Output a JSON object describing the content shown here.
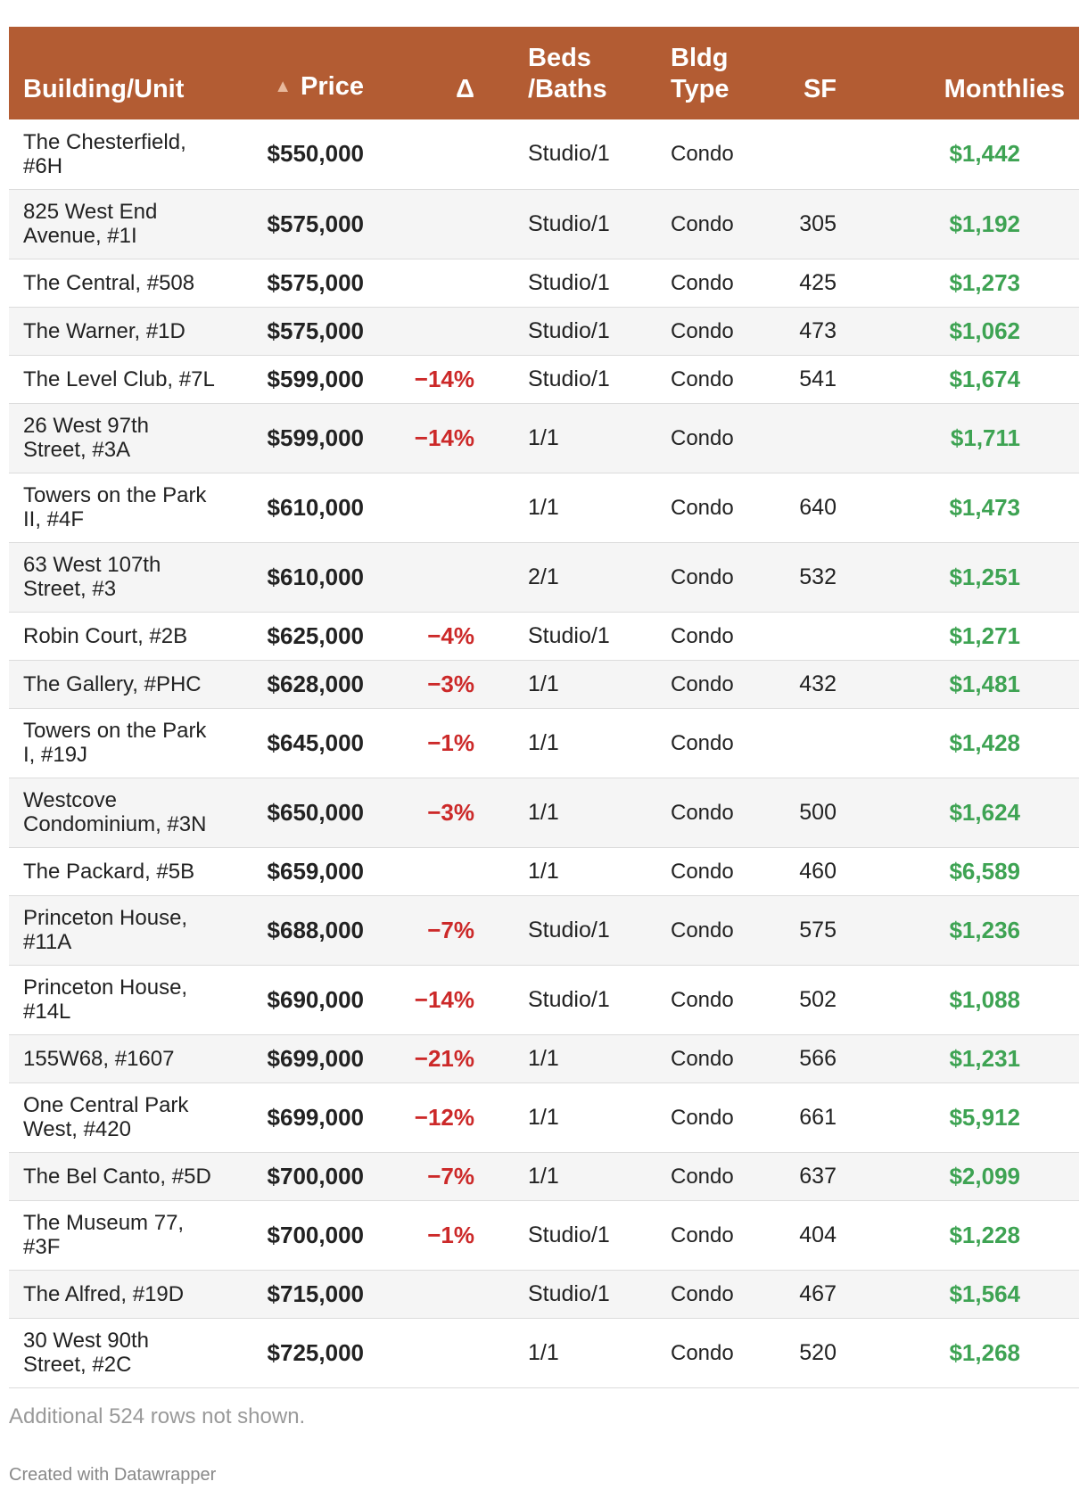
{
  "table": {
    "headers": {
      "building": "Building/Unit",
      "price_arrow": "▲",
      "price": "Price",
      "delta": "Δ",
      "beds_line1": "Beds",
      "beds_line2": "/Baths",
      "type_line1": "Bldg",
      "type_line2": "Type",
      "sf": "SF",
      "monthlies": "Monthlies"
    },
    "rows": [
      {
        "building_line1": "The Chesterfield,",
        "building_line2": "#6H",
        "price": "$550,000",
        "delta": "",
        "beds": "Studio/1",
        "type": "Condo",
        "sf": "",
        "monthlies": "$1,442"
      },
      {
        "building_line1": "825 West End",
        "building_line2": "Avenue, #1I",
        "price": "$575,000",
        "delta": "",
        "beds": "Studio/1",
        "type": "Condo",
        "sf": "305",
        "monthlies": "$1,192"
      },
      {
        "building_line1": "The Central, #508",
        "building_line2": "",
        "price": "$575,000",
        "delta": "",
        "beds": "Studio/1",
        "type": "Condo",
        "sf": "425",
        "monthlies": "$1,273"
      },
      {
        "building_line1": "The Warner, #1D",
        "building_line2": "",
        "price": "$575,000",
        "delta": "",
        "beds": "Studio/1",
        "type": "Condo",
        "sf": "473",
        "monthlies": "$1,062"
      },
      {
        "building_line1": "The Level Club, #7L",
        "building_line2": "",
        "price": "$599,000",
        "delta": "−14%",
        "beds": "Studio/1",
        "type": "Condo",
        "sf": "541",
        "monthlies": "$1,674"
      },
      {
        "building_line1": "26 West 97th",
        "building_line2": "Street, #3A",
        "price": "$599,000",
        "delta": "−14%",
        "beds": "1/1",
        "type": "Condo",
        "sf": "",
        "monthlies": "$1,711"
      },
      {
        "building_line1": "Towers on the Park",
        "building_line2": "II, #4F",
        "price": "$610,000",
        "delta": "",
        "beds": "1/1",
        "type": "Condo",
        "sf": "640",
        "monthlies": "$1,473"
      },
      {
        "building_line1": "63 West 107th",
        "building_line2": "Street, #3",
        "price": "$610,000",
        "delta": "",
        "beds": "2/1",
        "type": "Condo",
        "sf": "532",
        "monthlies": "$1,251"
      },
      {
        "building_line1": "Robin Court, #2B",
        "building_line2": "",
        "price": "$625,000",
        "delta": "−4%",
        "beds": "Studio/1",
        "type": "Condo",
        "sf": "",
        "monthlies": "$1,271"
      },
      {
        "building_line1": "The Gallery, #PHC",
        "building_line2": "",
        "price": "$628,000",
        "delta": "−3%",
        "beds": "1/1",
        "type": "Condo",
        "sf": "432",
        "monthlies": "$1,481"
      },
      {
        "building_line1": "Towers on the Park",
        "building_line2": "I, #19J",
        "price": "$645,000",
        "delta": "−1%",
        "beds": "1/1",
        "type": "Condo",
        "sf": "",
        "monthlies": "$1,428"
      },
      {
        "building_line1": "Westcove",
        "building_line2": "Condominium, #3N",
        "price": "$650,000",
        "delta": "−3%",
        "beds": "1/1",
        "type": "Condo",
        "sf": "500",
        "monthlies": "$1,624"
      },
      {
        "building_line1": "The Packard, #5B",
        "building_line2": "",
        "price": "$659,000",
        "delta": "",
        "beds": "1/1",
        "type": "Condo",
        "sf": "460",
        "monthlies": "$6,589"
      },
      {
        "building_line1": "Princeton House,",
        "building_line2": "#11A",
        "price": "$688,000",
        "delta": "−7%",
        "beds": "Studio/1",
        "type": "Condo",
        "sf": "575",
        "monthlies": "$1,236"
      },
      {
        "building_line1": "Princeton House,",
        "building_line2": "#14L",
        "price": "$690,000",
        "delta": "−14%",
        "beds": "Studio/1",
        "type": "Condo",
        "sf": "502",
        "monthlies": "$1,088"
      },
      {
        "building_line1": "155W68, #1607",
        "building_line2": "",
        "price": "$699,000",
        "delta": "−21%",
        "beds": "1/1",
        "type": "Condo",
        "sf": "566",
        "monthlies": "$1,231"
      },
      {
        "building_line1": "One Central Park",
        "building_line2": "West, #420",
        "price": "$699,000",
        "delta": "−12%",
        "beds": "1/1",
        "type": "Condo",
        "sf": "661",
        "monthlies": "$5,912"
      },
      {
        "building_line1": "The Bel Canto, #5D",
        "building_line2": "",
        "price": "$700,000",
        "delta": "−7%",
        "beds": "1/1",
        "type": "Condo",
        "sf": "637",
        "monthlies": "$2,099"
      },
      {
        "building_line1": "The Museum 77,",
        "building_line2": "#3F",
        "price": "$700,000",
        "delta": "−1%",
        "beds": "Studio/1",
        "type": "Condo",
        "sf": "404",
        "monthlies": "$1,228"
      },
      {
        "building_line1": "The Alfred, #19D",
        "building_line2": "",
        "price": "$715,000",
        "delta": "",
        "beds": "Studio/1",
        "type": "Condo",
        "sf": "467",
        "monthlies": "$1,564"
      },
      {
        "building_line1": "30 West 90th",
        "building_line2": "Street, #2C",
        "price": "$725,000",
        "delta": "",
        "beds": "1/1",
        "type": "Condo",
        "sf": "520",
        "monthlies": "$1,268"
      }
    ]
  },
  "footer": {
    "note": "Additional 524 rows not shown.",
    "credit": "Created with Datawrapper"
  },
  "colors": {
    "header_bg": "#b35c33",
    "delta_negative": "#cc2929",
    "monthlies": "#3ea353"
  }
}
